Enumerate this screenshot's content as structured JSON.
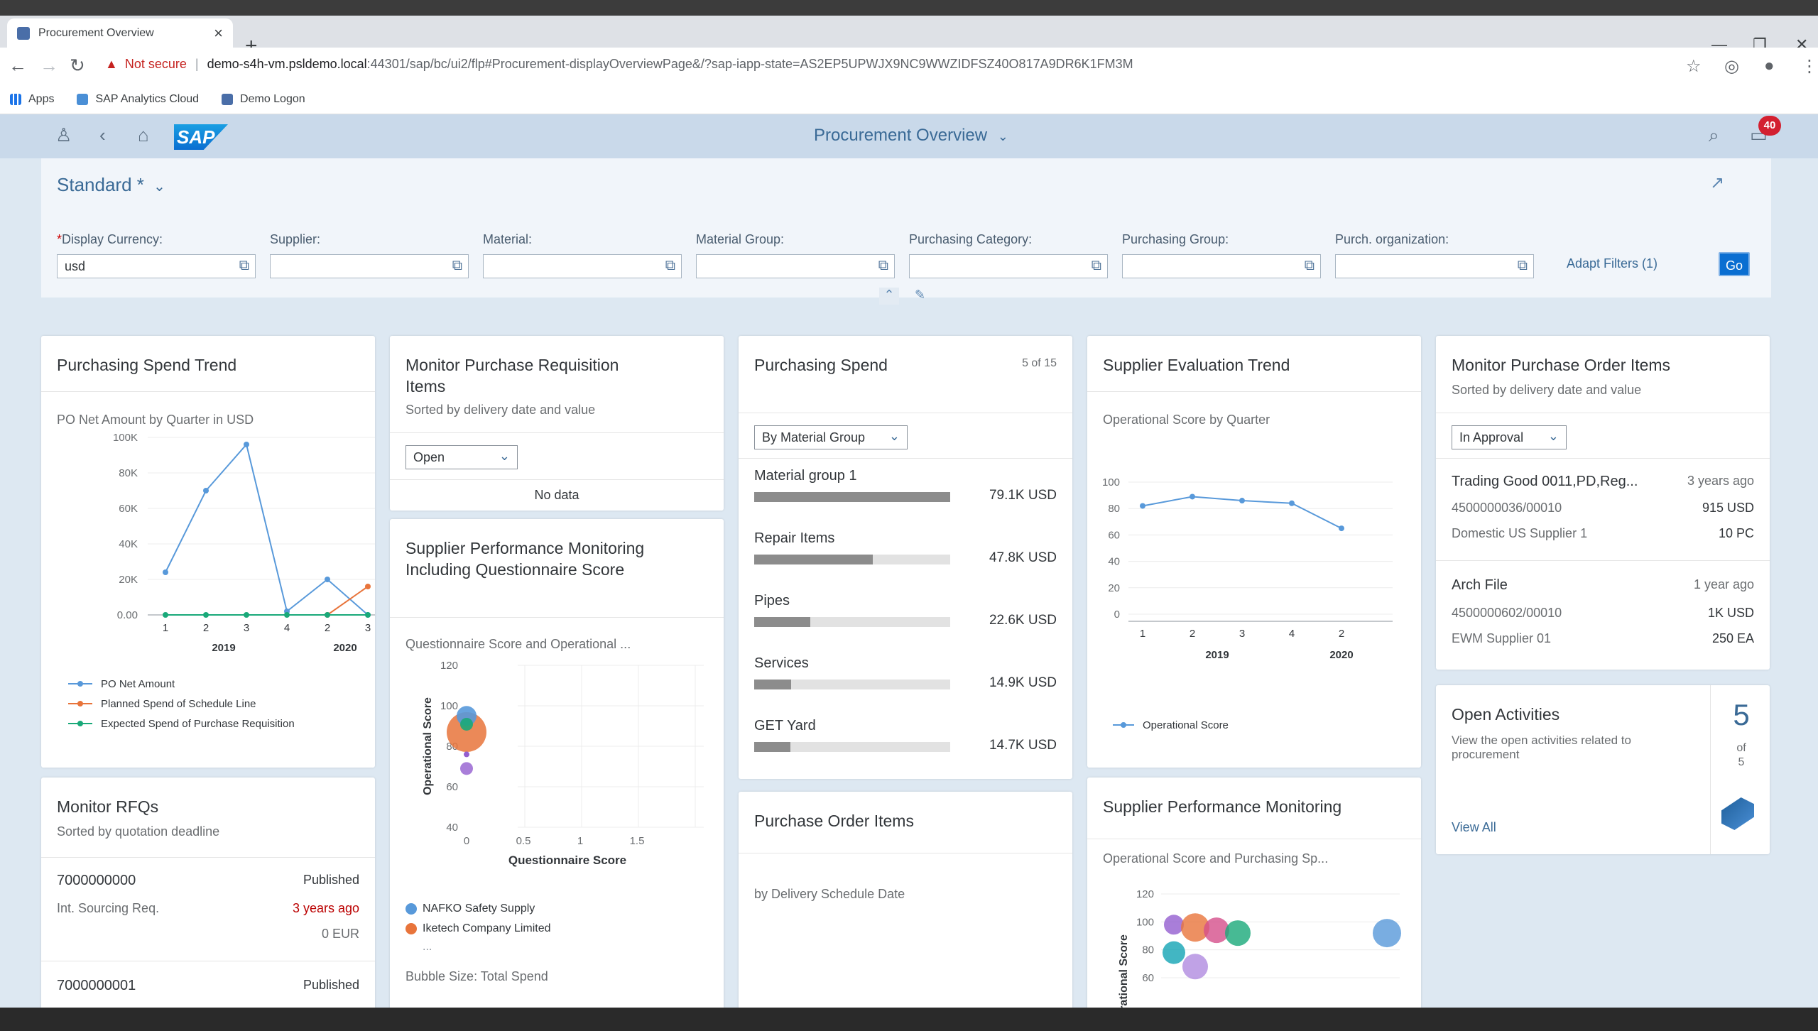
{
  "browser": {
    "tab_title": "Procurement Overview",
    "url_warning": "Not secure",
    "url_separator": "|",
    "url_host": "demo-s4h-vm.psldemo.local",
    "url_path": ":44301/sap/bc/ui2/flp#Procurement-displayOverviewPage&/?sap-iapp-state=AS2EP5UPWJX9NC9WWZIDFSZ40O817A9DR6K1FM3M",
    "bookmarks": [
      "Apps",
      "SAP Analytics Cloud",
      "Demo Logon"
    ]
  },
  "shell": {
    "title": "Procurement Overview",
    "notification_count": "40",
    "logo": "SAP"
  },
  "filterbar": {
    "variant": "Standard *",
    "filters": [
      {
        "label": "Display Currency:",
        "value": "usd",
        "required": true
      },
      {
        "label": "Supplier:",
        "value": ""
      },
      {
        "label": "Material:",
        "value": ""
      },
      {
        "label": "Material Group:",
        "value": ""
      },
      {
        "label": "Purchasing Category:",
        "value": ""
      },
      {
        "label": "Purchasing Group:",
        "value": ""
      },
      {
        "label": "Purch. organization:",
        "value": ""
      }
    ],
    "adapt_filters": "Adapt Filters (1)",
    "go": "Go",
    "required_mark": "*"
  },
  "cards": {
    "spend_trend": {
      "title": "Purchasing Spend Trend",
      "subtitle": "PO Net Amount by Quarter in USD",
      "y_ticks": [
        "100K",
        "80K",
        "60K",
        "40K",
        "20K",
        "0.00"
      ],
      "x_ticks": [
        "1",
        "2",
        "3",
        "4",
        "2",
        "3"
      ],
      "years": [
        "2019",
        "2020"
      ],
      "legend": [
        "PO Net Amount",
        "Planned Spend of Schedule Line",
        "Expected Spend of Purchase Requisition"
      ]
    },
    "monitor_pr": {
      "title": "Monitor Purchase Requisition Items",
      "subtitle": "Sorted by delivery date and value",
      "select": "Open",
      "nodata": "No data"
    },
    "spm_q": {
      "title": "Supplier Performance Monitoring Including Questionnaire Score",
      "subtitle": "Questionnaire Score and Operational ...",
      "y_label": "Operational Score",
      "x_label": "Questionnaire Score",
      "y_ticks": [
        "120",
        "100",
        "80",
        "60",
        "40"
      ],
      "x_ticks": [
        "0",
        "0.5",
        "1",
        "1.5"
      ],
      "legend": [
        "NAFKO Safety Supply",
        "Iketech Company Limited"
      ],
      "more": "...",
      "footer": "Bubble Size: Total Spend"
    },
    "purch_spend": {
      "title": "Purchasing Spend",
      "count": "5 of 15",
      "select": "By Material Group",
      "items": [
        {
          "label": "Material group 1",
          "value": "79.1K USD"
        },
        {
          "label": "Repair Items",
          "value": "47.8K USD"
        },
        {
          "label": "Pipes",
          "value": "22.6K USD"
        },
        {
          "label": "Services",
          "value": "14.9K USD"
        },
        {
          "label": "GET Yard",
          "value": "14.7K USD"
        }
      ]
    },
    "poi": {
      "title": "Purchase Order Items",
      "subtitle": "by Delivery Schedule Date"
    },
    "set": {
      "title": "Supplier Evaluation Trend",
      "subtitle": "Operational Score by Quarter",
      "y_ticks": [
        "100",
        "80",
        "60",
        "40",
        "20",
        "0"
      ],
      "x_ticks": [
        "1",
        "2",
        "3",
        "4",
        "2"
      ],
      "years": [
        "2019",
        "2020"
      ],
      "legend": "Operational Score"
    },
    "spm": {
      "title": "Supplier Performance Monitoring",
      "subtitle": "Operational Score and Purchasing Sp...",
      "y_label": "Operational Score",
      "y_ticks": [
        "120",
        "100",
        "80",
        "60"
      ]
    },
    "mpoi": {
      "title": "Monitor Purchase Order Items",
      "subtitle": "Sorted by delivery date and value",
      "select": "In Approval",
      "items": [
        {
          "name": "Trading Good 0011,PD,Reg...",
          "age": "3 years ago",
          "po": "4500000036/00010",
          "amount": "915 USD",
          "supplier": "Domestic US Supplier 1",
          "qty": "10 PC"
        },
        {
          "name": "Arch File",
          "age": "1 year ago",
          "po": "4500000602/00010",
          "amount": "1K USD",
          "supplier": "EWM Supplier 01",
          "qty": "250 EA"
        }
      ]
    },
    "activities": {
      "title": "Open Activities",
      "subtitle": "View the open activities related to procurement",
      "number": "5",
      "of": "of",
      "total": "5",
      "link": "View All"
    },
    "rfq": {
      "title": "Monitor RFQs",
      "subtitle": "Sorted by quotation deadline",
      "items": [
        {
          "id": "7000000000",
          "status": "Published",
          "desc": "Int. Sourcing Req.",
          "age": "3 years ago",
          "amount": "0 EUR"
        },
        {
          "id": "7000000001",
          "status": "Published"
        }
      ]
    }
  },
  "chart_data": [
    {
      "type": "line",
      "title": "Purchasing Spend Trend",
      "subtitle": "PO Net Amount by Quarter in USD",
      "categories": [
        "2019 Q1",
        "2019 Q2",
        "2019 Q3",
        "2019 Q4",
        "2020 Q2",
        "2020 Q3"
      ],
      "series": [
        {
          "name": "PO Net Amount",
          "values": [
            24000,
            70000,
            96000,
            2000,
            20000,
            0
          ]
        },
        {
          "name": "Planned Spend of Schedule Line",
          "values": [
            0,
            0,
            0,
            0,
            0,
            16000
          ]
        },
        {
          "name": "Expected Spend of Purchase Requisition",
          "values": [
            0,
            0,
            0,
            0,
            0,
            0
          ]
        }
      ],
      "ylim": [
        0,
        100000
      ],
      "legend": "bottom"
    },
    {
      "type": "scatter",
      "title": "Supplier Performance Monitoring Including Questionnaire Score",
      "xlabel": "Questionnaire Score",
      "ylabel": "Operational Score",
      "xlim": [
        0,
        1.5
      ],
      "ylim": [
        40,
        120
      ],
      "series": [
        {
          "name": "NAFKO Safety Supply",
          "points": [
            [
              0,
              95
            ],
            [
              0,
              93
            ]
          ]
        },
        {
          "name": "Iketech Company Limited",
          "points": [
            [
              0,
              87
            ]
          ]
        }
      ]
    },
    {
      "type": "bar",
      "title": "Purchasing Spend",
      "categories": [
        "Material group 1",
        "Repair Items",
        "Pipes",
        "Services",
        "GET Yard"
      ],
      "values": [
        79.1,
        47.8,
        22.6,
        14.9,
        14.7
      ],
      "unit": "K USD"
    },
    {
      "type": "line",
      "title": "Supplier Evaluation Trend",
      "subtitle": "Operational Score by Quarter",
      "categories": [
        "2019 Q1",
        "2019 Q2",
        "2019 Q3",
        "2019 Q4",
        "2020 Q2"
      ],
      "series": [
        {
          "name": "Operational Score",
          "values": [
            82,
            89,
            86,
            84,
            65
          ]
        }
      ],
      "ylim": [
        0,
        100
      ]
    },
    {
      "type": "scatter",
      "title": "Supplier Performance Monitoring",
      "ylabel": "Operational Score",
      "ylim": [
        60,
        120
      ],
      "series": [
        {
          "name": "",
          "points": [
            [
              0.0,
              98
            ],
            [
              0.1,
              96
            ],
            [
              0.2,
              94
            ],
            [
              0.3,
              92
            ],
            [
              0.0,
              78
            ],
            [
              0.1,
              68
            ],
            [
              1.0,
              92
            ]
          ]
        }
      ]
    }
  ]
}
